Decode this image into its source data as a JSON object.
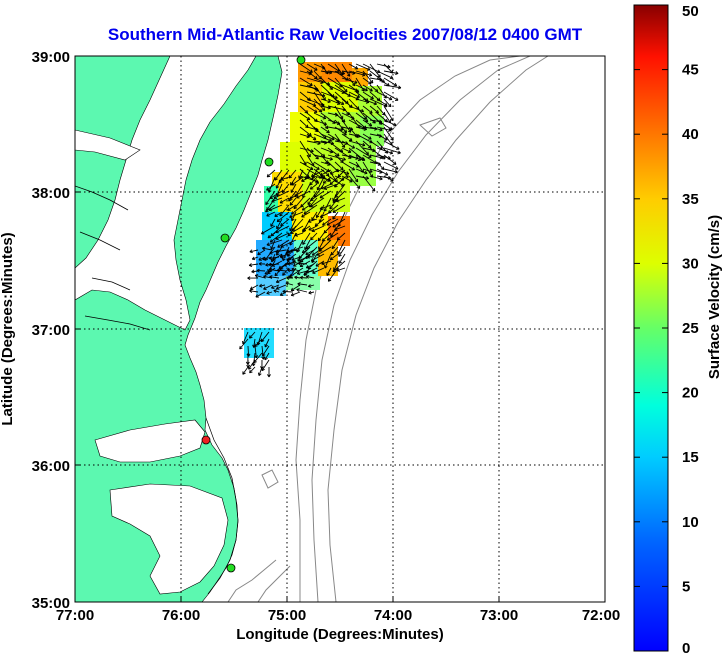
{
  "title": "Southern Mid-Atlantic Raw Velocities 2007/08/12 0400 GMT",
  "axes": {
    "xlabel": "Longitude (Degrees:Minutes)",
    "ylabel": "Latitude (Degrees:Minutes)",
    "x_ticks": [
      "77:00",
      "76:00",
      "75:00",
      "74:00",
      "73:00",
      "72:00"
    ],
    "y_ticks": [
      "39:00",
      "38:00",
      "37:00",
      "36:00",
      "35:00"
    ]
  },
  "colorbar": {
    "label": "Surface Velocity (cm/s)",
    "range": [
      0,
      50
    ],
    "ticks": [
      "50",
      "45",
      "40",
      "35",
      "30",
      "25",
      "20",
      "15",
      "10",
      "5",
      "0"
    ]
  },
  "colors": {
    "land": "#5cf8b0",
    "water": "#ffffff",
    "title": "#0000ee",
    "bathymetry": "#888888",
    "site_active": "#22dd22",
    "site_alert": "#ee2222"
  },
  "chart_data": {
    "type": "map",
    "x_range_deg": [
      -77,
      -72
    ],
    "y_range_deg": [
      35,
      39
    ],
    "grid": true,
    "colormap": "jet",
    "stations": [
      {
        "lon": -74.88,
        "lat": 38.97,
        "status": "active"
      },
      {
        "lon": -75.1,
        "lat": 38.22,
        "status": "active"
      },
      {
        "lon": -75.47,
        "lat": 37.66,
        "status": "active"
      },
      {
        "lon": -75.73,
        "lat": 36.18,
        "status": "alert"
      },
      {
        "lon": -75.48,
        "lat": 35.24,
        "status": "active"
      }
    ]
  }
}
